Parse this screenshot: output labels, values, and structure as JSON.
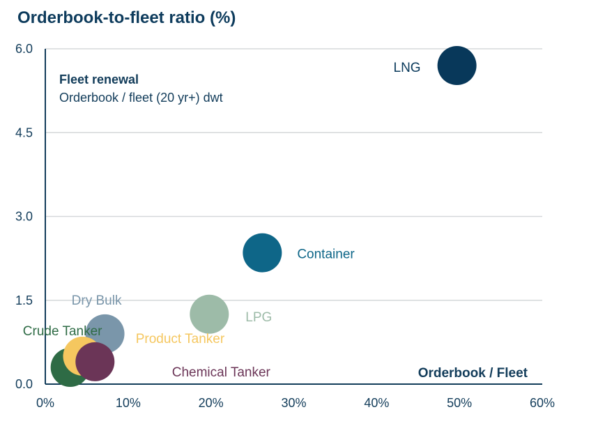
{
  "title": "Orderbook-to-fleet ratio (%)",
  "chart_data": {
    "type": "scatter",
    "title": "Orderbook-to-fleet ratio (%)",
    "annotation_title": "Fleet renewal",
    "annotation_subtitle": "Orderbook / fleet (20 yr+) dwt",
    "xlabel": "Orderbook / Fleet",
    "ylabel": "",
    "xlim": [
      0,
      0.6
    ],
    "ylim": [
      0,
      6.0
    ],
    "x_ticks": [
      "0%",
      "10%",
      "20%",
      "30%",
      "40%",
      "50%",
      "60%"
    ],
    "y_ticks": [
      "0.0",
      "1.5",
      "3.0",
      "4.5",
      "6.0"
    ],
    "grid": "horizontal",
    "points": [
      {
        "label": "Crude Tanker",
        "x": 0.03,
        "y": 0.3,
        "color": "#2e6b45"
      },
      {
        "label": "Product Tanker",
        "x": 0.045,
        "y": 0.5,
        "color": "#f5c75f"
      },
      {
        "label": "Dry Bulk",
        "x": 0.072,
        "y": 0.9,
        "color": "#7a96aa"
      },
      {
        "label": "Chemical Tanker",
        "x": 0.06,
        "y": 0.4,
        "color": "#6b3557"
      },
      {
        "label": "LPG",
        "x": 0.198,
        "y": 1.25,
        "color": "#9dbba8"
      },
      {
        "label": "Container",
        "x": 0.262,
        "y": 2.35,
        "color": "#0e6688"
      },
      {
        "label": "LNG",
        "x": 0.497,
        "y": 5.7,
        "color": "#08385a"
      }
    ]
  }
}
